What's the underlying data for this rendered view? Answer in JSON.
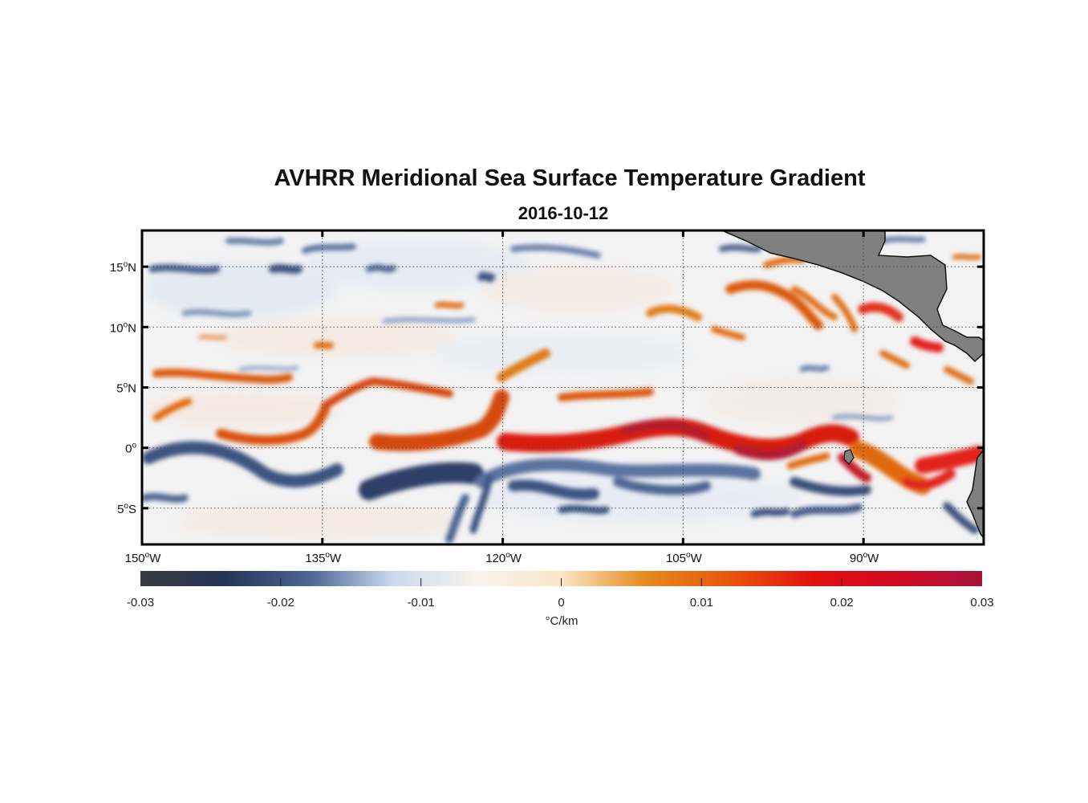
{
  "title": "AVHRR Meridional Sea Surface Temperature Gradient",
  "subtitle": "2016-10-12",
  "map": {
    "lon_range": [
      -150,
      -80
    ],
    "lat_range": [
      -8,
      18
    ],
    "lon_ticks": [
      {
        "value": -150,
        "num": "150",
        "hemi": "W"
      },
      {
        "value": -135,
        "num": "135",
        "hemi": "W"
      },
      {
        "value": -120,
        "num": "120",
        "hemi": "W"
      },
      {
        "value": -105,
        "num": "105",
        "hemi": "W"
      },
      {
        "value": -90,
        "num": "90",
        "hemi": "W"
      }
    ],
    "lat_ticks": [
      {
        "value": 15,
        "num": "15",
        "hemi": "N"
      },
      {
        "value": 10,
        "num": "10",
        "hemi": "N"
      },
      {
        "value": 5,
        "num": "5",
        "hemi": "N"
      },
      {
        "value": 0,
        "num": "0",
        "hemi": ""
      },
      {
        "value": -5,
        "num": "5",
        "hemi": "S"
      }
    ],
    "grid": "dotted",
    "land_color": "#808080"
  },
  "colorbar": {
    "ticks": [
      "-0.03",
      "-0.02",
      "-0.01",
      "0",
      "0.01",
      "0.02",
      "0.03"
    ],
    "tick_values": [
      -0.03,
      -0.02,
      -0.01,
      0,
      0.01,
      0.02,
      0.03
    ],
    "label": "°C/km",
    "colors": [
      "#3a3a40",
      "#253558",
      "#4a6593",
      "#c9d9ef",
      "#f8f3ec",
      "#fbe5c6",
      "#e58a1e",
      "#e8560c",
      "#e41010",
      "#d00a22",
      "#a5133a"
    ]
  }
}
